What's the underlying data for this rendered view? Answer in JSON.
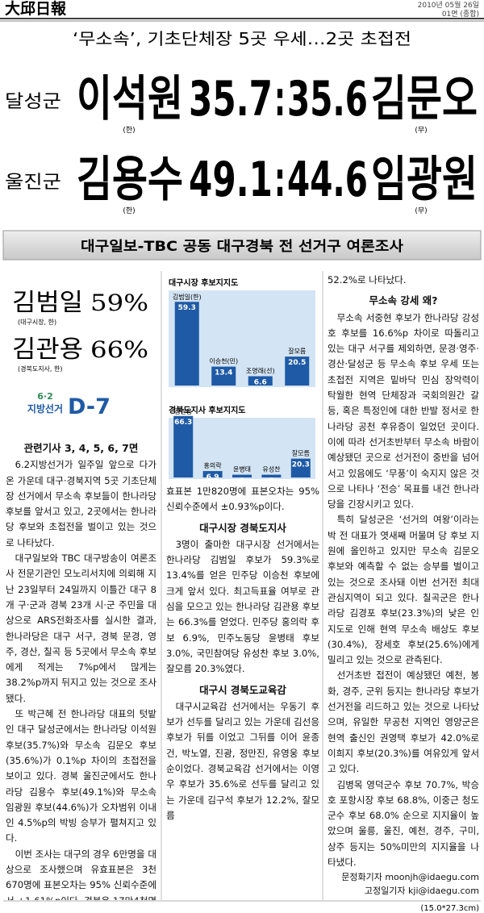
{
  "masthead": {
    "name": "大邱日報",
    "date": "2010년 05월 26일",
    "page": "01면 (종합)"
  },
  "headline": "‘무소속’, 기초단체장 5곳 우세…2곳 초접전",
  "races": [
    {
      "region": "달성군",
      "candidate1": "이석원",
      "score1": "35.7",
      "separator": ":",
      "score2": "35.6",
      "candidate2": "김문오",
      "party1": "(한)",
      "party2": "(무)"
    },
    {
      "region": "울진군",
      "candidate1": "김용수",
      "score1": "49.1",
      "separator": ":",
      "score2": "44.6",
      "candidate2": "임광원",
      "party1": "(한)",
      "party2": "(무)"
    }
  ],
  "banner": "대구일보-TBC 공동 대구경북 전 선거구 여론조사",
  "highlights": [
    {
      "name": "김범일",
      "value": "59%",
      "role": "(대구시장, 한)"
    },
    {
      "name": "김관용",
      "value": "66%",
      "role": "(경북도지사, 한)"
    }
  ],
  "dday": {
    "event": "6·2",
    "event_name": "지방선거",
    "countdown": "D-7"
  },
  "charts": [
    {
      "type": "bar",
      "title": "대구시장 후보지지도",
      "color": "#1f5aa6",
      "categories": [
        "김범일(한)",
        "이승천(민)",
        "조명래(선)",
        "잘모름"
      ],
      "values": [
        59.3,
        13.4,
        6.6,
        20.5
      ]
    },
    {
      "type": "bar",
      "title": "경북도지사 후보지지도",
      "color": "#1f5aa6",
      "categories": [
        "김관용",
        "홍의락",
        "윤병태",
        "유성찬",
        "잘모름"
      ],
      "values": [
        66.3,
        6.9,
        3.0,
        3.0,
        20.3
      ]
    }
  ],
  "column1": {
    "related": "관련기사 3, 4, 5, 6, 7면",
    "paragraphs": [
      "6.2지방선거가 일주일 앞으로 다가온 가운데 대구·경북지역 5곳 기초단체장 선거에서 무소속 후보들이 한나라당 후보를 앞서고 있고, 2곳에서는 한나라당 후보와 초접전을 벌이고 있는 것으로 나타났다.",
      "대구일보와 TBC 대구방송이 여론조사 전문기관인 모노리서치에 의뢰해 지난 23일부터 24일까지 이틀간 대구 8개 구·군과 경북 23개 시·군 주민을 대상으로 ARS전화조사를 실시한 결과, 한나라당은 대구 서구, 경북 문경, 영주, 경산, 칠곡 등 5곳에서 무소속 후보에게 적게는 7%p에서 많게는 38.2%p까지 뒤지고 있는 것으로 조사됐다.",
      "또 박근혜 전 한나라당 대표의 텃밭인 대구 달성군에서는 한나라당 이석원 후보(35.7%)와 무소속 김문오 후보(35.6%)가 0.1%p 차이의 초접전을 보이고 있다. 경북 울진군에서도 한나라당 김용수 후보(49.1%)와 무소속 임광원 후보(44.6%)가 오차범위 이내인 4.5%p의 박빙 승부가 펼쳐지고 있다.",
      "이번 조사는 대구의 경우 6만명을 대상으로 조사했으며 유효표본은 3천670명에 표본오차는 95% 신뢰수준에서 ±1.61%p이다. 경북은 17만4천명을 대상으로 조사했으며 유"
    ]
  },
  "column2": {
    "continuation": "효표본 1만820명에 표본오차는 95% 신뢰수준에서 ±0.93%p이다.",
    "sections": [
      {
        "heading": "대구시장 경북도지사",
        "paragraphs": [
          "3명이 출마한 대구시장 선거에서는 한나라당 김범일 후보가 59.3%로 13.4%를 얻은 민주당 이승천 후보에 크게 앞서 있다. 최고득표율 여부로 관심을 모으고 있는 한나라당 김관용 후보는 66.3%를 얻었다. 민주당 홍의락 후보 6.9%, 민주노동당 윤병태 후보 3.0%, 국민참여당 유성찬 후보 3.0%, 잘모름 20.3%였다."
        ]
      },
      {
        "heading": "대구시 경북도교육감",
        "paragraphs": [
          "대구시교육감 선거에서는 우동기 후보가 선두를 달리고 있는 가운데 김선응 후보가 뒤를 이었고 그뒤를 이어 윤종건, 박노열, 진광, 정만진, 유영웅 후보 순이었다. 경북교육감 선거에서는 이영우 후보가 35.6%로 선두를 달리고 있는 가운데 김구석 후보가 12.2%, 잘모름"
        ]
      }
    ]
  },
  "column3": {
    "continuation": "52.2%로 나타났다.",
    "sections": [
      {
        "heading": "무소속 강세 왜?",
        "paragraphs": [
          "무소속 서중현 후보가 한나라당 강성호 후보를 16.6%p 차이로 따돌리고 있는 대구 서구를 제외하면, 문경·영주·경산·달성군 등 무소속 후보 우세 또는 초접전 지역은 밑바닥 민심 장악력이 탁월한 현역 단체장과 국회의원간 갈등, 혹은 특정인에 대한 반발 정서로 한나라당 공천 후유증이 일었던 곳이다. 이에 따라 선거초반부터 무소속 바람이 예상됐던 곳으로 선거전이 중반을 넘어서고 있음에도 ‘무풍’이 숙지지 않은 것으로 나타나 ‘전승’ 목표를 내건 한나라당을 긴장시키고 있다.",
          "특히 달성군은 ‘선거의 여왕’이라는 박 전 대표가 엿새째 머물며 당 후보 지원에 올인하고 있지만 무소속 김문오 후보와 예측할 수 없는 승부를 벌이고 있는 것으로 조사돼 이번 선거전 최대 관심지역이 되고 있다. 칠곡군은 한나라당 김경포 후보(23.3%)의 낮은 인지도로 인해 현역 무소속 배상도 후보(30.4%), 장세호 후보(25.6%)에게 밀리고 있는 것으로 관측된다.",
          "선거초반 접전이 예상됐던 예천, 봉화, 경주, 군위 등지는 한나라당 후보가 선거전을 리드하고 있는 것으로 나타났으며, 유일한 무공천 지역인 영양군은 현역 출신인 권영택 후보가 42.0%로 이희지 후보(20.3%)를 여유있게 앞서고 있다.",
          "김병목 영덕군수 후보 70.7%, 박승호 포항시장 후보 68.8%, 이중근 청도군수 후보 68.0% 순으로 지지율이 높았으며 울릉, 울진, 예천, 경주, 구미, 상주 등지는 50%미만의 지지율을 나타냈다."
        ]
      }
    ],
    "bylines": [
      "문정화기자 moonjh@idaegu.com",
      "고정일기자 kji@idaegu.com"
    ]
  },
  "size_note": "(15.0*27.3cm)"
}
